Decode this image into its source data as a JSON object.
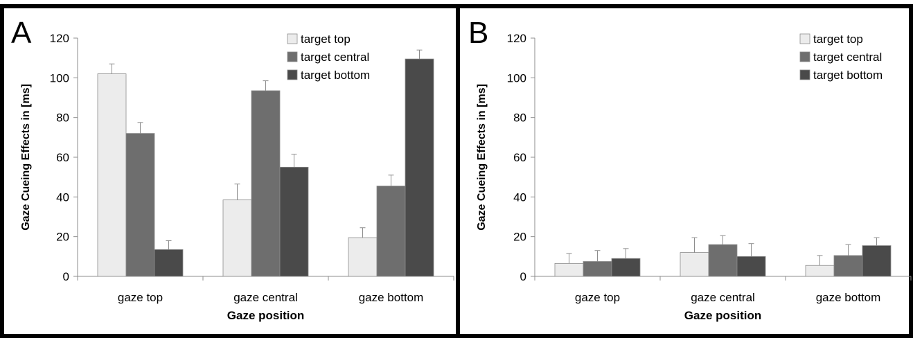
{
  "colors": {
    "target top": "#ececec",
    "target central": "#6e6e6e",
    "target bottom": "#4a4a4a",
    "frame": "#000000",
    "axis": "#8c8c8c"
  },
  "chart_data": [
    {
      "panel_label": "A",
      "type": "bar",
      "ylabel": "Gaze Cueing Effects in [ms]",
      "xlabel": "Gaze position",
      "ylim": [
        0,
        120
      ],
      "yticks": [
        0,
        20,
        40,
        60,
        80,
        100,
        120
      ],
      "categories": [
        "gaze top",
        "gaze central",
        "gaze bottom"
      ],
      "legend_position": "top-right",
      "series": [
        {
          "name": "target top",
          "values": [
            102,
            38.5,
            19.5
          ],
          "errors": [
            5,
            8,
            5
          ]
        },
        {
          "name": "target central",
          "values": [
            72,
            93.5,
            45.5
          ],
          "errors": [
            5.5,
            5,
            5.5
          ]
        },
        {
          "name": "target bottom",
          "values": [
            13.5,
            55,
            109.5
          ],
          "errors": [
            4.5,
            6.5,
            4.5
          ]
        }
      ]
    },
    {
      "panel_label": "B",
      "type": "bar",
      "ylabel": "Gaze Cueing Effects in [ms]",
      "xlabel": "Gaze position",
      "ylim": [
        0,
        120
      ],
      "yticks": [
        0,
        20,
        40,
        60,
        80,
        100,
        120
      ],
      "categories": [
        "gaze top",
        "gaze central",
        "gaze bottom"
      ],
      "legend_position": "top-right",
      "series": [
        {
          "name": "target top",
          "values": [
            6.5,
            12,
            5.5
          ],
          "errors": [
            5,
            7.5,
            5
          ]
        },
        {
          "name": "target central",
          "values": [
            7.5,
            16,
            10.5
          ],
          "errors": [
            5.5,
            4.5,
            5.5
          ]
        },
        {
          "name": "target bottom",
          "values": [
            9,
            10,
            15.5
          ],
          "errors": [
            5,
            6.5,
            4
          ]
        }
      ]
    }
  ]
}
